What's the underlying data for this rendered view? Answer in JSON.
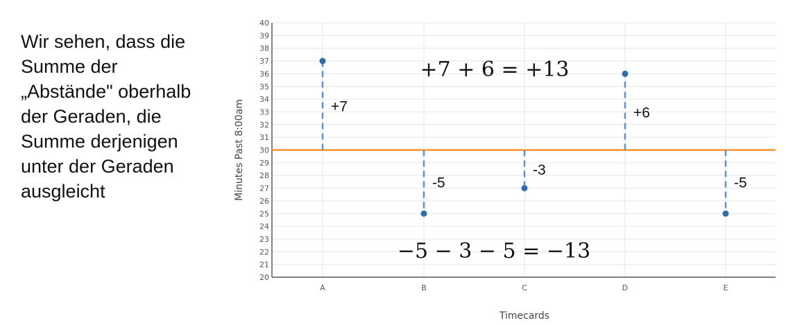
{
  "explanation": "Wir sehen, dass die\nSumme der\n„Abstände\" oberhalb\nder Geraden, die\nSumme derjenigen\nunter der Geraden\nausgleicht",
  "colors": {
    "points": "#2b6fb0",
    "mean_line": "#f5922a",
    "deviation": "#5b8fd6"
  },
  "chart_data": {
    "type": "scatter",
    "categories": [
      "A",
      "B",
      "C",
      "D",
      "E"
    ],
    "values": [
      37,
      25,
      27,
      36,
      25
    ],
    "xlabel": "Timecards",
    "ylabel": "Minutes Past 8:00am",
    "ylim": [
      20,
      40
    ],
    "yticks": [
      20,
      21,
      22,
      23,
      24,
      25,
      26,
      27,
      28,
      29,
      30,
      31,
      32,
      33,
      34,
      35,
      36,
      37,
      38,
      39,
      40
    ],
    "grid": true,
    "mean_line": 30,
    "deviation_labels": [
      "+7",
      "-5",
      "-3",
      "+6",
      "-5"
    ],
    "annotations": {
      "above_sum": "+7 + 6 = +13",
      "below_sum": "−5 − 3 − 5 = −13"
    }
  }
}
